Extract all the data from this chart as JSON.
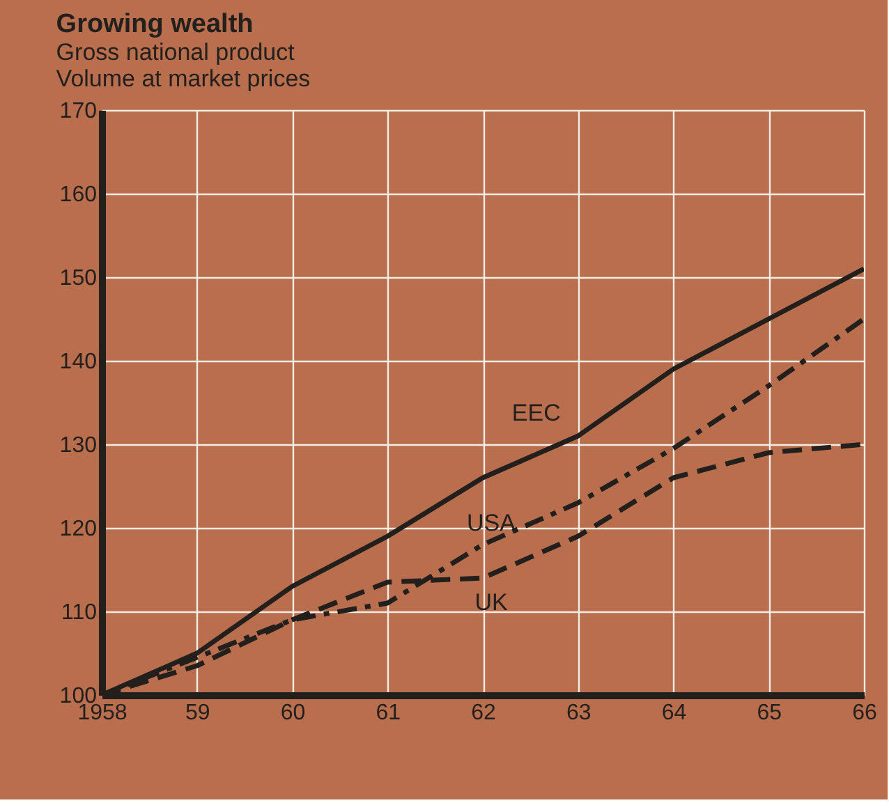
{
  "chart_data": {
    "type": "line",
    "title": "Growing wealth",
    "subtitle": [
      "Gross national product",
      "Volume at market prices"
    ],
    "x": [
      1958,
      1959,
      1960,
      1961,
      1962,
      1963,
      1964,
      1965,
      1966
    ],
    "series": [
      {
        "name": "EEC",
        "color": "#231f1c",
        "line_style": "solid",
        "values": [
          100,
          105,
          113,
          119,
          126,
          131,
          139,
          145,
          151
        ]
      },
      {
        "name": "USA",
        "color": "#231f1c",
        "line_style": "dashdot",
        "values": [
          100,
          104.5,
          109,
          111,
          118,
          123,
          129.5,
          137,
          145
        ]
      },
      {
        "name": "UK",
        "color": "#231f1c",
        "line_style": "dashed",
        "values": [
          100,
          103.5,
          109,
          113.5,
          114,
          119,
          126,
          129,
          130
        ]
      }
    ],
    "xlim": [
      1958,
      1966
    ],
    "xticks": [
      {
        "value": 1958,
        "label": "1958"
      },
      {
        "value": 1959,
        "label": "59"
      },
      {
        "value": 1960,
        "label": "60"
      },
      {
        "value": 1961,
        "label": "61"
      },
      {
        "value": 1962,
        "label": "62"
      },
      {
        "value": 1963,
        "label": "63"
      },
      {
        "value": 1964,
        "label": "64"
      },
      {
        "value": 1965,
        "label": "65"
      },
      {
        "value": 1966,
        "label": "66"
      }
    ],
    "ylim": [
      100,
      170
    ],
    "yticks": [
      100,
      110,
      120,
      130,
      140,
      150,
      160,
      170
    ],
    "grid": true,
    "marker": "none"
  }
}
